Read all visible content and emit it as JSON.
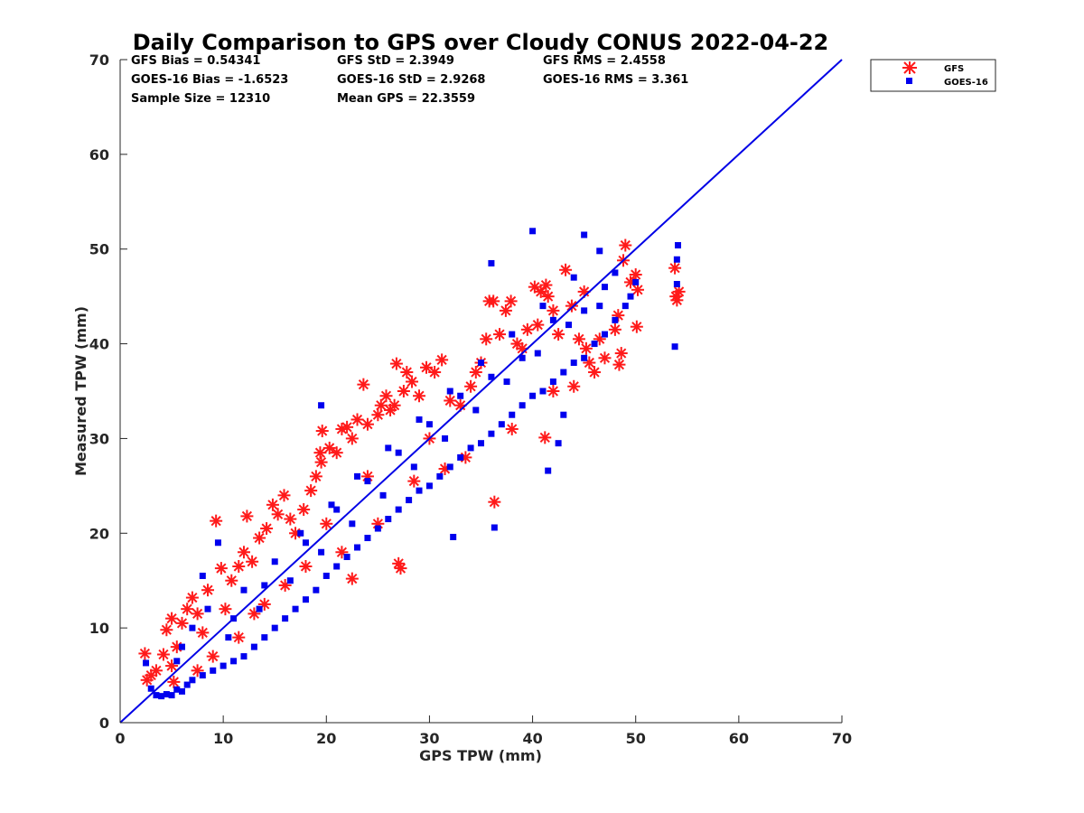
{
  "chart_data": {
    "type": "scatter",
    "title": "Daily Comparison to GPS over Cloudy CONUS 2022-04-22",
    "xlabel": "GPS TPW (mm)",
    "ylabel": "Measured TPW (mm)",
    "xlim": [
      0,
      70
    ],
    "ylim": [
      0,
      70
    ],
    "x_ticks": [
      "0",
      "10",
      "20",
      "30",
      "40",
      "50",
      "60",
      "70"
    ],
    "y_ticks": [
      "0",
      "10",
      "20",
      "30",
      "40",
      "50",
      "60",
      "70"
    ],
    "grid": false,
    "legend_position": "outside-top-right",
    "stats": [
      "GFS Bias = 0.54341",
      "GFS StD = 2.3949",
      "GFS RMS = 2.4558",
      "GOES-16 Bias = -1.6523",
      "GOES-16 StD = 2.9268",
      "GOES-16 RMS = 3.361",
      "Sample Size = 12310",
      "Mean GPS = 22.3559"
    ],
    "reference_line": {
      "x": [
        0,
        70
      ],
      "y": [
        0,
        70
      ],
      "color": "#0000e6"
    },
    "series": [
      {
        "name": "GFS",
        "marker": "asterisk",
        "color": "#ff1a1a",
        "points": [
          [
            2.4,
            7.3
          ],
          [
            2.6,
            4.5
          ],
          [
            3.0,
            5.0
          ],
          [
            3.5,
            5.5
          ],
          [
            4.2,
            7.2
          ],
          [
            4.5,
            9.8
          ],
          [
            5.0,
            11.0
          ],
          [
            5.2,
            4.3
          ],
          [
            5.5,
            8.0
          ],
          [
            6.0,
            10.5
          ],
          [
            6.5,
            12.0
          ],
          [
            7.0,
            13.2
          ],
          [
            7.5,
            11.5
          ],
          [
            8.0,
            9.5
          ],
          [
            8.5,
            14.0
          ],
          [
            9.3,
            21.3
          ],
          [
            9.8,
            16.3
          ],
          [
            10.2,
            12.0
          ],
          [
            10.8,
            15.0
          ],
          [
            11.5,
            16.5
          ],
          [
            12.3,
            21.8
          ],
          [
            12.0,
            18.0
          ],
          [
            12.8,
            17.0
          ],
          [
            13.5,
            19.5
          ],
          [
            14.2,
            20.5
          ],
          [
            14.8,
            23.0
          ],
          [
            15.3,
            22.0
          ],
          [
            15.9,
            24.0
          ],
          [
            16.5,
            21.5
          ],
          [
            17.0,
            20.0
          ],
          [
            17.8,
            22.5
          ],
          [
            18.5,
            24.5
          ],
          [
            19.0,
            26.0
          ],
          [
            19.5,
            27.5
          ],
          [
            19.6,
            30.8
          ],
          [
            19.4,
            28.5
          ],
          [
            20.3,
            29.0
          ],
          [
            21.0,
            28.5
          ],
          [
            21.5,
            31.0
          ],
          [
            22.0,
            31.2
          ],
          [
            22.5,
            30.0
          ],
          [
            23.0,
            32.0
          ],
          [
            23.6,
            35.7
          ],
          [
            24.0,
            31.5
          ],
          [
            25.0,
            32.5
          ],
          [
            25.3,
            33.5
          ],
          [
            25.8,
            34.5
          ],
          [
            26.2,
            33.0
          ],
          [
            26.6,
            33.5
          ],
          [
            26.8,
            37.9
          ],
          [
            27.5,
            35.0
          ],
          [
            27.8,
            37.0
          ],
          [
            28.3,
            36.0
          ],
          [
            29.0,
            34.5
          ],
          [
            29.7,
            37.5
          ],
          [
            30.5,
            37.0
          ],
          [
            31.2,
            38.3
          ],
          [
            32.0,
            34.0
          ],
          [
            33.0,
            33.5
          ],
          [
            34.0,
            35.5
          ],
          [
            35.0,
            38.0
          ],
          [
            35.5,
            40.5
          ],
          [
            35.8,
            44.5
          ],
          [
            36.2,
            44.5
          ],
          [
            36.8,
            41.0
          ],
          [
            37.4,
            43.5
          ],
          [
            37.9,
            44.5
          ],
          [
            38.5,
            40.0
          ],
          [
            39.5,
            41.5
          ],
          [
            40.2,
            46.0
          ],
          [
            40.5,
            42.0
          ],
          [
            40.8,
            45.5
          ],
          [
            41.3,
            46.2
          ],
          [
            42.0,
            43.5
          ],
          [
            42.5,
            41.0
          ],
          [
            43.2,
            47.8
          ],
          [
            43.8,
            44.0
          ],
          [
            44.5,
            40.5
          ],
          [
            45.2,
            39.5
          ],
          [
            45.5,
            38.0
          ],
          [
            46.5,
            40.5
          ],
          [
            47.0,
            38.5
          ],
          [
            48.0,
            41.5
          ],
          [
            48.3,
            43.0
          ],
          [
            48.4,
            37.8
          ],
          [
            48.6,
            39.0
          ],
          [
            49.0,
            50.4
          ],
          [
            48.8,
            48.8
          ],
          [
            49.5,
            46.5
          ],
          [
            50.0,
            47.3
          ],
          [
            50.2,
            45.7
          ],
          [
            50.1,
            41.8
          ],
          [
            53.8,
            48.0
          ],
          [
            53.9,
            45.0
          ],
          [
            54.0,
            44.6
          ],
          [
            54.2,
            45.5
          ],
          [
            41.2,
            30.1
          ],
          [
            36.3,
            23.3
          ],
          [
            27.2,
            16.3
          ],
          [
            27.0,
            16.8
          ],
          [
            31.5,
            26.8
          ],
          [
            28.5,
            25.5
          ],
          [
            24.0,
            26.0
          ],
          [
            20.0,
            21.0
          ],
          [
            18.0,
            16.5
          ],
          [
            16.0,
            14.5
          ],
          [
            21.5,
            18.0
          ],
          [
            13.0,
            11.5
          ],
          [
            25.0,
            21.0
          ],
          [
            22.5,
            15.2
          ],
          [
            9.0,
            7.0
          ],
          [
            5.0,
            6.0
          ],
          [
            7.5,
            5.5
          ],
          [
            11.5,
            9.0
          ],
          [
            14.0,
            12.5
          ],
          [
            33.5,
            28.0
          ],
          [
            38.0,
            31.0
          ],
          [
            42.0,
            35.0
          ],
          [
            44.0,
            35.5
          ],
          [
            46.0,
            37.0
          ],
          [
            30.0,
            30.0
          ],
          [
            34.5,
            37.0
          ],
          [
            39.0,
            39.5
          ],
          [
            41.5,
            45.0
          ],
          [
            45.0,
            45.5
          ]
        ]
      },
      {
        "name": "GOES-16",
        "marker": "square",
        "color": "#0000ee",
        "points": [
          [
            2.5,
            6.3
          ],
          [
            3.0,
            3.6
          ],
          [
            3.5,
            2.9
          ],
          [
            4.0,
            2.8
          ],
          [
            4.5,
            3.0
          ],
          [
            5.0,
            2.9
          ],
          [
            5.5,
            3.5
          ],
          [
            6.0,
            3.3
          ],
          [
            6.5,
            4.0
          ],
          [
            7.0,
            4.5
          ],
          [
            8.0,
            5.0
          ],
          [
            9.0,
            5.5
          ],
          [
            10.0,
            6.0
          ],
          [
            11.0,
            6.5
          ],
          [
            12.0,
            7.0
          ],
          [
            13.0,
            8.0
          ],
          [
            14.0,
            9.0
          ],
          [
            15.0,
            10.0
          ],
          [
            16.0,
            11.0
          ],
          [
            17.0,
            12.0
          ],
          [
            18.0,
            13.0
          ],
          [
            19.0,
            14.0
          ],
          [
            20.0,
            15.5
          ],
          [
            21.0,
            16.5
          ],
          [
            22.0,
            17.5
          ],
          [
            23.0,
            18.5
          ],
          [
            24.0,
            19.5
          ],
          [
            25.0,
            20.5
          ],
          [
            26.0,
            21.5
          ],
          [
            27.0,
            22.5
          ],
          [
            28.0,
            23.5
          ],
          [
            29.0,
            24.5
          ],
          [
            30.0,
            25.0
          ],
          [
            31.0,
            26.0
          ],
          [
            32.0,
            27.0
          ],
          [
            33.0,
            28.0
          ],
          [
            34.0,
            29.0
          ],
          [
            35.0,
            29.5
          ],
          [
            36.0,
            30.5
          ],
          [
            37.0,
            31.5
          ],
          [
            38.0,
            32.5
          ],
          [
            39.0,
            33.5
          ],
          [
            40.0,
            34.5
          ],
          [
            41.0,
            35.0
          ],
          [
            42.0,
            36.0
          ],
          [
            43.0,
            37.0
          ],
          [
            44.0,
            38.0
          ],
          [
            45.0,
            38.5
          ],
          [
            46.0,
            40.0
          ],
          [
            47.0,
            41.0
          ],
          [
            48.0,
            42.5
          ],
          [
            49.0,
            44.0
          ],
          [
            50.0,
            46.5
          ],
          [
            53.8,
            39.7
          ],
          [
            54.0,
            48.9
          ],
          [
            54.1,
            50.4
          ],
          [
            54.0,
            46.3
          ],
          [
            40.0,
            51.9
          ],
          [
            45.0,
            51.5
          ],
          [
            46.5,
            49.8
          ],
          [
            36.0,
            48.5
          ],
          [
            32.3,
            19.6
          ],
          [
            36.3,
            20.6
          ],
          [
            41.5,
            26.6
          ],
          [
            43.0,
            32.5
          ],
          [
            42.5,
            29.5
          ],
          [
            19.5,
            33.5
          ],
          [
            9.5,
            19.0
          ],
          [
            8.0,
            15.5
          ],
          [
            12.0,
            14.0
          ],
          [
            15.0,
            17.0
          ],
          [
            17.5,
            20.0
          ],
          [
            20.5,
            23.0
          ],
          [
            23.0,
            26.0
          ],
          [
            26.0,
            29.0
          ],
          [
            29.0,
            32.0
          ],
          [
            32.0,
            35.0
          ],
          [
            35.0,
            38.0
          ],
          [
            38.0,
            41.0
          ],
          [
            41.0,
            44.0
          ],
          [
            44.0,
            47.0
          ],
          [
            47.0,
            46.0
          ],
          [
            49.5,
            45.0
          ],
          [
            48.0,
            47.5
          ],
          [
            10.5,
            9.0
          ],
          [
            13.5,
            12.0
          ],
          [
            16.5,
            15.0
          ],
          [
            19.5,
            18.0
          ],
          [
            22.5,
            21.0
          ],
          [
            25.5,
            24.0
          ],
          [
            28.5,
            27.0
          ],
          [
            31.5,
            30.0
          ],
          [
            34.5,
            33.0
          ],
          [
            37.5,
            36.0
          ],
          [
            40.5,
            39.0
          ],
          [
            43.5,
            42.0
          ],
          [
            46.5,
            44.0
          ],
          [
            6.0,
            8.0
          ],
          [
            7.0,
            10.0
          ],
          [
            8.5,
            12.0
          ],
          [
            5.5,
            6.5
          ],
          [
            11.0,
            11.0
          ],
          [
            14.0,
            14.5
          ],
          [
            18.0,
            19.0
          ],
          [
            21.0,
            22.5
          ],
          [
            24.0,
            25.5
          ],
          [
            27.0,
            28.5
          ],
          [
            30.0,
            31.5
          ],
          [
            33.0,
            34.5
          ],
          [
            36.0,
            36.5
          ],
          [
            39.0,
            38.5
          ],
          [
            42.0,
            42.5
          ],
          [
            45.0,
            43.5
          ]
        ]
      }
    ]
  }
}
